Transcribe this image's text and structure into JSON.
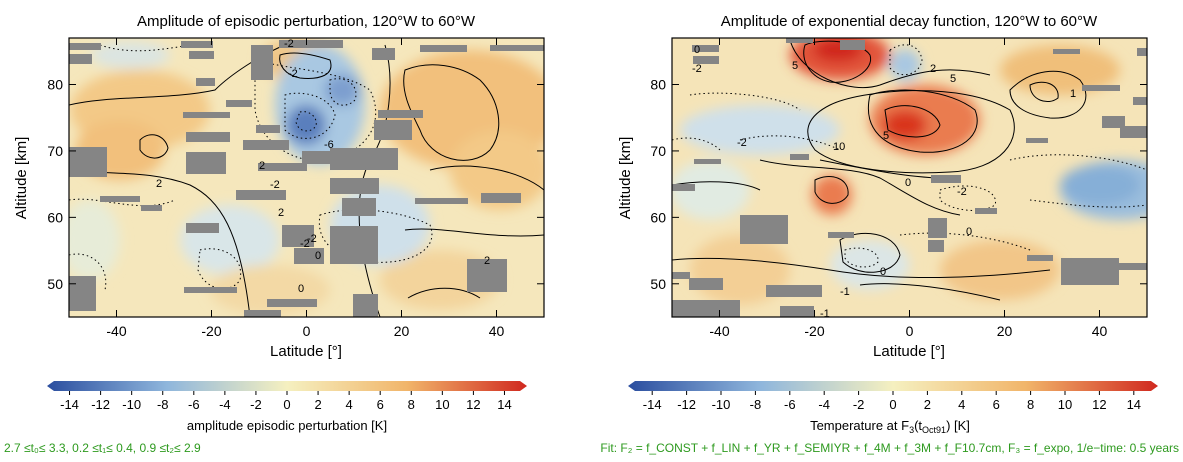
{
  "chart_data": [
    {
      "type": "heatmap",
      "title": "Amplitude of episodic perturbation, 120°W to 60°W",
      "xlabel": "Latitude [°]",
      "ylabel": "Altitude [km]",
      "xlim": [
        -50,
        50
      ],
      "ylim": [
        45,
        87
      ],
      "x_ticks": [
        -40,
        -20,
        0,
        20,
        40
      ],
      "y_ticks": [
        50,
        60,
        70,
        80
      ],
      "contour_labels": [
        "-2",
        "-2",
        "-6",
        "2",
        "-2",
        "2",
        "2",
        "-2",
        "0",
        "2",
        "0",
        "-2"
      ],
      "colorbar": {
        "label": "amplitude episodic perturbation [K]",
        "range": [
          -15,
          15
        ],
        "ticks": [
          -14,
          -12,
          -10,
          -8,
          -6,
          -4,
          -2,
          0,
          2,
          4,
          6,
          8,
          10,
          12,
          14
        ]
      }
    },
    {
      "type": "heatmap",
      "title": "Amplitude of exponential decay function, 120°W to 60°W",
      "xlabel": "Latitude [°]",
      "ylabel": "Altitude [km]",
      "xlim": [
        -50,
        50
      ],
      "ylim": [
        45,
        87
      ],
      "x_ticks": [
        -40,
        -20,
        0,
        20,
        40
      ],
      "y_ticks": [
        50,
        60,
        70,
        80
      ],
      "contour_labels": [
        "0",
        "-2",
        "5",
        "5",
        "2",
        "1",
        "5",
        "-2",
        "10",
        "0",
        "-2",
        "0",
        "0",
        "-1",
        "-1"
      ],
      "colorbar": {
        "label": "Temperature at F",
        "label_sub": "3",
        "label_paren": "(t",
        "label_paren_sub": "Oct91",
        "label_tail": ") [K]",
        "range": [
          -15,
          15
        ],
        "ticks": [
          -14,
          -12,
          -10,
          -8,
          -6,
          -4,
          -2,
          0,
          2,
          4,
          6,
          8,
          10,
          12,
          14
        ]
      }
    }
  ],
  "footnotes": {
    "left": "2.7 ≤t₀≤ 3.3, 0.2 ≤t₁≤ 0.4, 0.9 ≤t₂≤ 2.9",
    "right": "Fit: F₂ = f_CONST + f_LIN + f_YR + f_SEMIYR + f_4M + f_3M + f_F10.7cm,   F₃ = f_expo, 1/e−time: 0.5 years"
  },
  "colors": {
    "min": "#2b4e9f",
    "low": "#8fb6dc",
    "mid": "#f5f0c0",
    "high": "#f1b56a",
    "max": "#d0281f",
    "gray_box": "#858585",
    "footnote": "#2e9a1f"
  }
}
